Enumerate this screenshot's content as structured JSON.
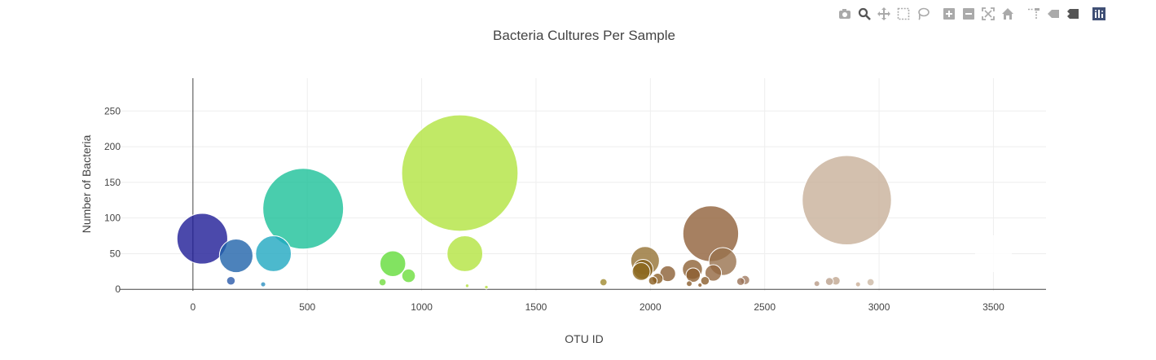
{
  "toolbar": [
    {
      "name": "camera-icon",
      "tip": "Download plot as a png"
    },
    {
      "name": "zoom-icon",
      "tip": "Zoom",
      "active": true
    },
    {
      "name": "pan-icon",
      "tip": "Pan"
    },
    {
      "name": "box-select-icon",
      "tip": "Box Select"
    },
    {
      "name": "lasso-select-icon",
      "tip": "Lasso Select"
    },
    {
      "sep": true
    },
    {
      "name": "zoom-in-icon",
      "tip": "Zoom in"
    },
    {
      "name": "zoom-out-icon",
      "tip": "Zoom out"
    },
    {
      "name": "autoscale-icon",
      "tip": "Autoscale"
    },
    {
      "name": "reset-axes-icon",
      "tip": "Reset axes"
    },
    {
      "sep": true
    },
    {
      "name": "spike-lines-icon",
      "tip": "Toggle Spike Lines"
    },
    {
      "name": "hover-closest-icon",
      "tip": "Show closest data on hover"
    },
    {
      "name": "hover-compare-icon",
      "tip": "Compare data on hover"
    },
    {
      "sep": true
    },
    {
      "name": "plotly-logo-icon",
      "tip": "Produced with Plotly"
    }
  ],
  "chart_data": {
    "type": "scatter",
    "marker_mode": "bubble",
    "title": "Bacteria Cultures Per Sample",
    "xlabel": "OTU ID",
    "ylabel": "Number of Bacteria",
    "xlim": [
      -320,
      3730
    ],
    "ylim": [
      -2,
      296
    ],
    "xticks": [
      0,
      500,
      1000,
      1500,
      2000,
      2500,
      3000,
      3500
    ],
    "yticks": [
      0,
      50,
      100,
      150,
      200,
      250
    ],
    "grid": true,
    "colorscale": "Earth",
    "points": [
      {
        "x": 41,
        "y": 71,
        "color": "#1e1c96"
      },
      {
        "x": 189,
        "y": 47,
        "color": "#1f63aa"
      },
      {
        "x": 352,
        "y": 50,
        "color": "#1fa8c0"
      },
      {
        "x": 482,
        "y": 113,
        "color": "#1cc198"
      },
      {
        "x": 166,
        "y": 12,
        "color": "#2a5aaa"
      },
      {
        "x": 307,
        "y": 7,
        "color": "#2a90c0"
      },
      {
        "x": 874,
        "y": 36,
        "color": "#63dc3a"
      },
      {
        "x": 943,
        "y": 19,
        "color": "#6cdd3c"
      },
      {
        "x": 829,
        "y": 10,
        "color": "#72dc40"
      },
      {
        "x": 1167,
        "y": 163,
        "color": "#b1e340"
      },
      {
        "x": 1189,
        "y": 50,
        "color": "#b3e340"
      },
      {
        "x": 1795,
        "y": 10,
        "color": "#a08a30"
      },
      {
        "x": 1977,
        "y": 40,
        "color": "#957233"
      },
      {
        "x": 1968,
        "y": 28,
        "color": "#85601b"
      },
      {
        "x": 1960,
        "y": 25,
        "color": "#8e6a20"
      },
      {
        "x": 2011,
        "y": 12,
        "color": "#8a5e20"
      },
      {
        "x": 2032,
        "y": 15,
        "color": "#8c6028"
      },
      {
        "x": 2076,
        "y": 22,
        "color": "#8b5f34"
      },
      {
        "x": 2184,
        "y": 28,
        "color": "#8d6236"
      },
      {
        "x": 2187,
        "y": 20,
        "color": "#8c5e30"
      },
      {
        "x": 2170,
        "y": 8,
        "color": "#8a5c2c"
      },
      {
        "x": 2239,
        "y": 12,
        "color": "#8a5c2c"
      },
      {
        "x": 2264,
        "y": 78,
        "color": "#90603a"
      },
      {
        "x": 2275,
        "y": 23,
        "color": "#926640"
      },
      {
        "x": 2317,
        "y": 39,
        "color": "#98724e"
      },
      {
        "x": 2395,
        "y": 11,
        "color": "#9a7256"
      },
      {
        "x": 2414,
        "y": 13,
        "color": "#a07a60"
      },
      {
        "x": 2859,
        "y": 125,
        "color": "#c8b09a"
      },
      {
        "x": 2728,
        "y": 8,
        "color": "#b89a86"
      },
      {
        "x": 2783,
        "y": 11,
        "color": "#baa08c"
      },
      {
        "x": 2811,
        "y": 12,
        "color": "#c0a690"
      },
      {
        "x": 2963,
        "y": 10,
        "color": "#ccb8a4"
      },
      {
        "x": 2908,
        "y": 7,
        "color": "#caae96"
      },
      {
        "x": 1283,
        "y": 3,
        "color": "#b8e040"
      },
      {
        "x": 1199,
        "y": 5,
        "color": "#b4e040"
      },
      {
        "x": 2217,
        "y": 6,
        "color": "#8c5c2c"
      },
      {
        "x": 3500,
        "y": 50,
        "color": "#ffffff"
      }
    ]
  }
}
